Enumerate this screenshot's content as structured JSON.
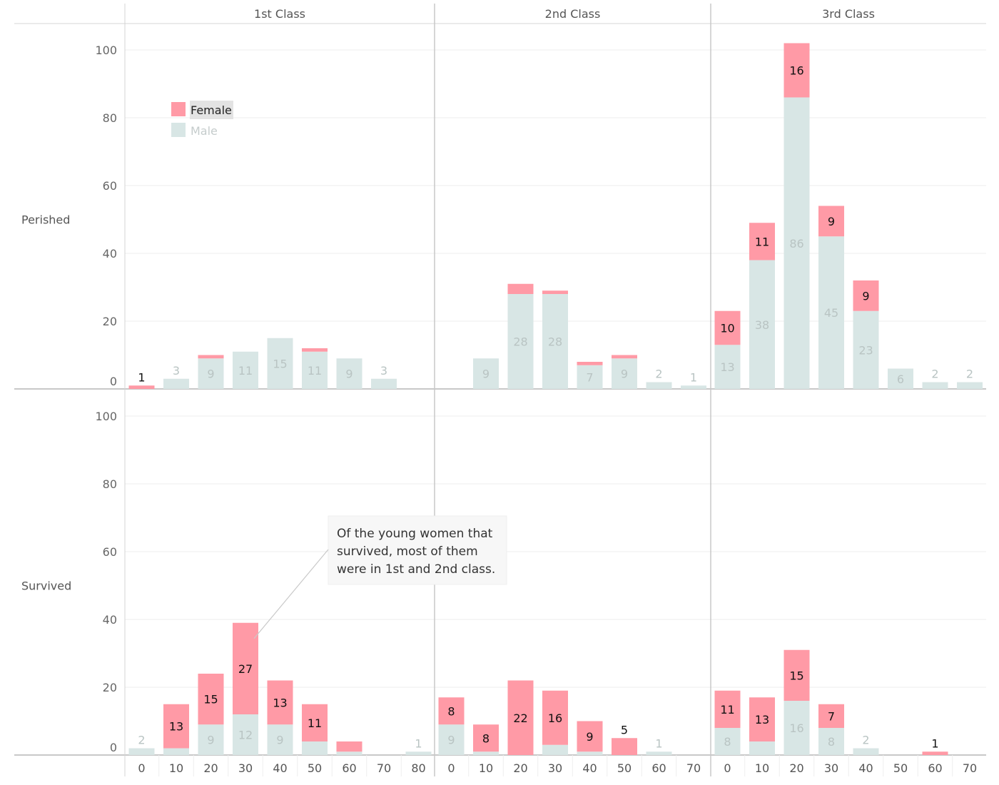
{
  "chart_data": {
    "type": "bar",
    "stacked": true,
    "grid": true,
    "legend_position": "top-left",
    "legend": [
      {
        "name": "Female",
        "color": "#ff9aa6"
      },
      {
        "name": "Male",
        "color": "#d8e6e5"
      }
    ],
    "columns": [
      "1st Class",
      "2nd Class",
      "3rd Class"
    ],
    "rows": [
      "Perished",
      "Survived"
    ],
    "y_ticks": [
      0,
      20,
      40,
      60,
      80,
      100
    ],
    "ylim": [
      0,
      108
    ],
    "panels": [
      {
        "class": "1st Class",
        "outcome": "Perished",
        "x": [
          "0",
          "10",
          "20",
          "30",
          "40",
          "50",
          "60",
          "70",
          "80"
        ],
        "male": [
          0,
          3,
          9,
          11,
          15,
          11,
          9,
          3,
          null
        ],
        "female": [
          1,
          0,
          1,
          0,
          0,
          1,
          0,
          0,
          null
        ],
        "labels_male": [
          "",
          "3",
          "9",
          "11",
          "15",
          "11",
          "9",
          "3",
          ""
        ],
        "labels_female": [
          "1",
          "",
          "",
          "",
          "",
          "",
          "",
          "",
          ""
        ]
      },
      {
        "class": "2nd Class",
        "outcome": "Perished",
        "x": [
          "0",
          "10",
          "20",
          "30",
          "40",
          "50",
          "60",
          "70"
        ],
        "male": [
          0,
          9,
          28,
          28,
          7,
          9,
          2,
          1
        ],
        "female": [
          0,
          0,
          3,
          1,
          1,
          1,
          0,
          0
        ],
        "labels_male": [
          "",
          "9",
          "28",
          "28",
          "7",
          "9",
          "2",
          "1"
        ],
        "labels_female": [
          "",
          "",
          "",
          "",
          "",
          "",
          "",
          ""
        ]
      },
      {
        "class": "3rd Class",
        "outcome": "Perished",
        "x": [
          "0",
          "10",
          "20",
          "30",
          "40",
          "50",
          "60",
          "70"
        ],
        "male": [
          13,
          38,
          86,
          45,
          23,
          6,
          2,
          2
        ],
        "female": [
          10,
          11,
          16,
          9,
          9,
          0,
          0,
          0
        ],
        "labels_male": [
          "13",
          "38",
          "86",
          "45",
          "23",
          "6",
          "2",
          "2"
        ],
        "labels_female": [
          "10",
          "11",
          "16",
          "9",
          "9",
          "",
          "",
          ""
        ]
      },
      {
        "class": "1st Class",
        "outcome": "Survived",
        "x": [
          "0",
          "10",
          "20",
          "30",
          "40",
          "50",
          "60",
          "70",
          "80"
        ],
        "male": [
          2,
          2,
          9,
          12,
          9,
          4,
          1,
          0,
          1
        ],
        "female": [
          0,
          13,
          15,
          27,
          13,
          11,
          3,
          0,
          0
        ],
        "labels_male": [
          "2",
          "",
          "9",
          "12",
          "9",
          "",
          "",
          "",
          "1"
        ],
        "labels_female": [
          "",
          "13",
          "15",
          "27",
          "13",
          "11",
          "",
          "",
          ""
        ]
      },
      {
        "class": "2nd Class",
        "outcome": "Survived",
        "x": [
          "0",
          "10",
          "20",
          "30",
          "40",
          "50",
          "60",
          "70"
        ],
        "male": [
          9,
          1,
          0,
          3,
          1,
          0,
          1,
          0
        ],
        "female": [
          8,
          8,
          22,
          16,
          9,
          5,
          0,
          0
        ],
        "labels_male": [
          "9",
          "",
          "",
          "",
          "",
          "",
          "1",
          ""
        ],
        "labels_female": [
          "8",
          "8",
          "22",
          "16",
          "9",
          "5",
          "",
          ""
        ]
      },
      {
        "class": "3rd Class",
        "outcome": "Survived",
        "x": [
          "0",
          "10",
          "20",
          "30",
          "40",
          "50",
          "60",
          "70"
        ],
        "male": [
          8,
          4,
          16,
          8,
          2,
          0,
          0,
          0
        ],
        "female": [
          11,
          13,
          15,
          7,
          0,
          0,
          1,
          0
        ],
        "labels_male": [
          "8",
          "",
          "16",
          "8",
          "2",
          "",
          "",
          ""
        ],
        "labels_female": [
          "11",
          "13",
          "15",
          "7",
          "",
          "",
          "1",
          ""
        ]
      }
    ],
    "annotation": {
      "lines": [
        "Of the young women that",
        "survived, most of them",
        "were in 1st and 2nd class."
      ],
      "points_to": {
        "class": "1st Class",
        "outcome": "Survived",
        "x": "30",
        "y": 39
      }
    }
  }
}
